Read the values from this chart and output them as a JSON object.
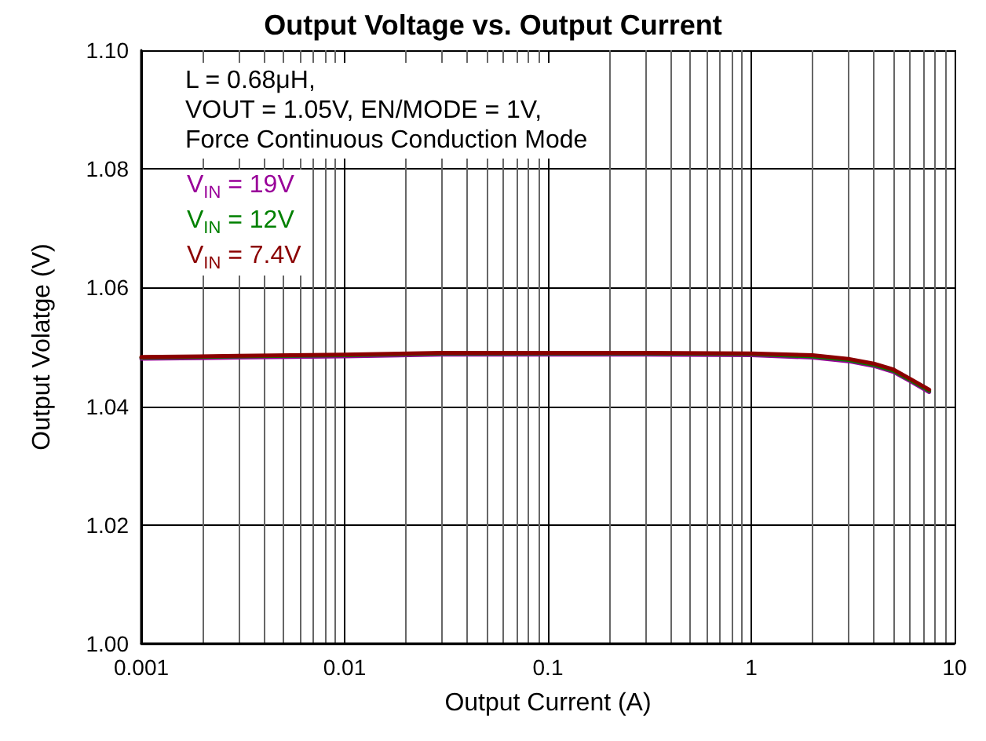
{
  "chart_data": {
    "type": "line",
    "title": "Output Voltage vs. Output Current",
    "xlabel": "Output Current (A)",
    "ylabel": "Output Volatge (V)",
    "annotations": [
      "L = 0.68μH,",
      "VOUT = 1.05V, EN/MODE = 1V,",
      "Force Continuous Conduction Mode"
    ],
    "x": [
      0.001,
      0.003,
      0.01,
      0.03,
      0.1,
      0.3,
      1,
      2,
      3,
      4,
      5,
      6,
      7.5
    ],
    "series": [
      {
        "name": "V$_{IN}$ = 19V",
        "color": "#990099",
        "values": [
          1.048,
          1.0482,
          1.0484,
          1.0487,
          1.0487,
          1.0487,
          1.0486,
          1.0482,
          1.0476,
          1.0468,
          1.0458,
          1.0443,
          1.0424
        ]
      },
      {
        "name": "V$_{IN}$ = 12V",
        "color": "#008000",
        "values": [
          1.0482,
          1.0484,
          1.0486,
          1.0489,
          1.0489,
          1.0489,
          1.0488,
          1.0484,
          1.0478,
          1.047,
          1.046,
          1.0445,
          1.0426
        ]
      },
      {
        "name": "V$_{IN}$ = 7.4V",
        "color": "#8b0000",
        "values": [
          1.0483,
          1.0485,
          1.0487,
          1.049,
          1.049,
          1.049,
          1.0489,
          1.0486,
          1.048,
          1.0472,
          1.0462,
          1.0447,
          1.0428
        ]
      }
    ],
    "xlim": [
      0.001,
      10
    ],
    "xticks": [
      0.001,
      0.01,
      0.1,
      1,
      10
    ],
    "ylim": [
      1.0,
      1.1
    ],
    "yticks": [
      {
        "value": 1.0,
        "label": "1.00"
      },
      1.02,
      1.04,
      1.06,
      1.08,
      {
        "value": 1.1,
        "label": "1.10"
      }
    ],
    "log": "x",
    "grid": true,
    "legend": "top left",
    "marker": "none",
    "line_style": "solid"
  }
}
